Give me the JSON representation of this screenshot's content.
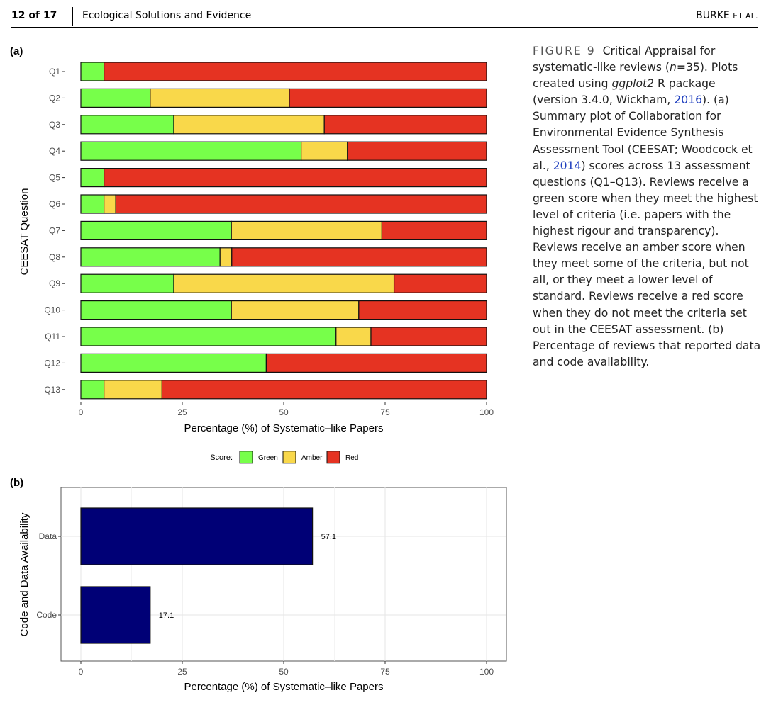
{
  "header": {
    "page_number": "12 of 17",
    "journal": "Ecological Solutions and Evidence",
    "author_main": "BURKE",
    "author_etal": "ET AL."
  },
  "panels": {
    "a": "(a)",
    "b": "(b)"
  },
  "caption": {
    "label": "FIGURE 9",
    "part1": "Critical Appraisal for systematic-like reviews (",
    "n_var": "n",
    "part2": "=35). Plots created using ",
    "pkg": "ggplot2",
    "part3": " R package (version 3.4.0, Wickham, ",
    "cite1": "2016",
    "part4": "). (a) Summary plot of Collaboration for Environmental Evidence Synthesis Assessment Tool (CEESAT; Woodcock et al., ",
    "cite2": "2014",
    "part5": ") scores across 13 assessment questions (Q1–Q13). Reviews receive a green score when they meet the highest level of criteria (i.e. papers with the highest rigour and transparency). Reviews receive an amber score when they meet some of the criteria, but not all, or they meet a lower level of standard. Reviews receive a red score when they do not meet the criteria set out in the CEESAT assessment. (b) Percentage of reviews that reported data and code availability."
  },
  "colors": {
    "green": "#77FF4A",
    "amber": "#F9D84A",
    "red": "#E53322",
    "navy": "#000076"
  },
  "chart_data": [
    {
      "type": "bar",
      "orientation": "horizontal",
      "stacked": true,
      "categories": [
        "Q1",
        "Q2",
        "Q3",
        "Q4",
        "Q5",
        "Q6",
        "Q7",
        "Q8",
        "Q9",
        "Q10",
        "Q11",
        "Q12",
        "Q13"
      ],
      "series": [
        {
          "name": "Green",
          "values": [
            5.7,
            17.1,
            22.9,
            54.3,
            5.7,
            5.7,
            37.1,
            34.3,
            22.9,
            37.1,
            62.9,
            45.7,
            5.7
          ]
        },
        {
          "name": "Amber",
          "values": [
            0,
            34.3,
            37.1,
            11.4,
            0,
            2.9,
            37.1,
            2.9,
            54.3,
            31.4,
            8.6,
            0,
            14.3
          ]
        },
        {
          "name": "Red",
          "values": [
            94.3,
            48.6,
            40.0,
            34.3,
            94.3,
            91.4,
            25.8,
            62.8,
            22.8,
            31.5,
            28.5,
            54.3,
            80.0
          ]
        }
      ],
      "xlim": [
        0,
        100
      ],
      "xticks": [
        "0",
        "25",
        "50",
        "75",
        "100"
      ],
      "xlabel": "Percentage (%) of Systematic–like Papers",
      "ylabel": "CEESAT Question",
      "legend_title": "Score:",
      "legend_position": "bottom",
      "grid": false
    },
    {
      "type": "bar",
      "orientation": "horizontal",
      "categories": [
        "Data",
        "Code"
      ],
      "values": [
        57.1,
        17.1
      ],
      "labels": [
        "57.1",
        "17.1"
      ],
      "xlim": [
        0,
        100
      ],
      "xticks": [
        "0",
        "25",
        "50",
        "75",
        "100"
      ],
      "xlabel": "Percentage (%) of Systematic–like Papers",
      "ylabel": "Code and Data Availability",
      "grid": true
    }
  ]
}
